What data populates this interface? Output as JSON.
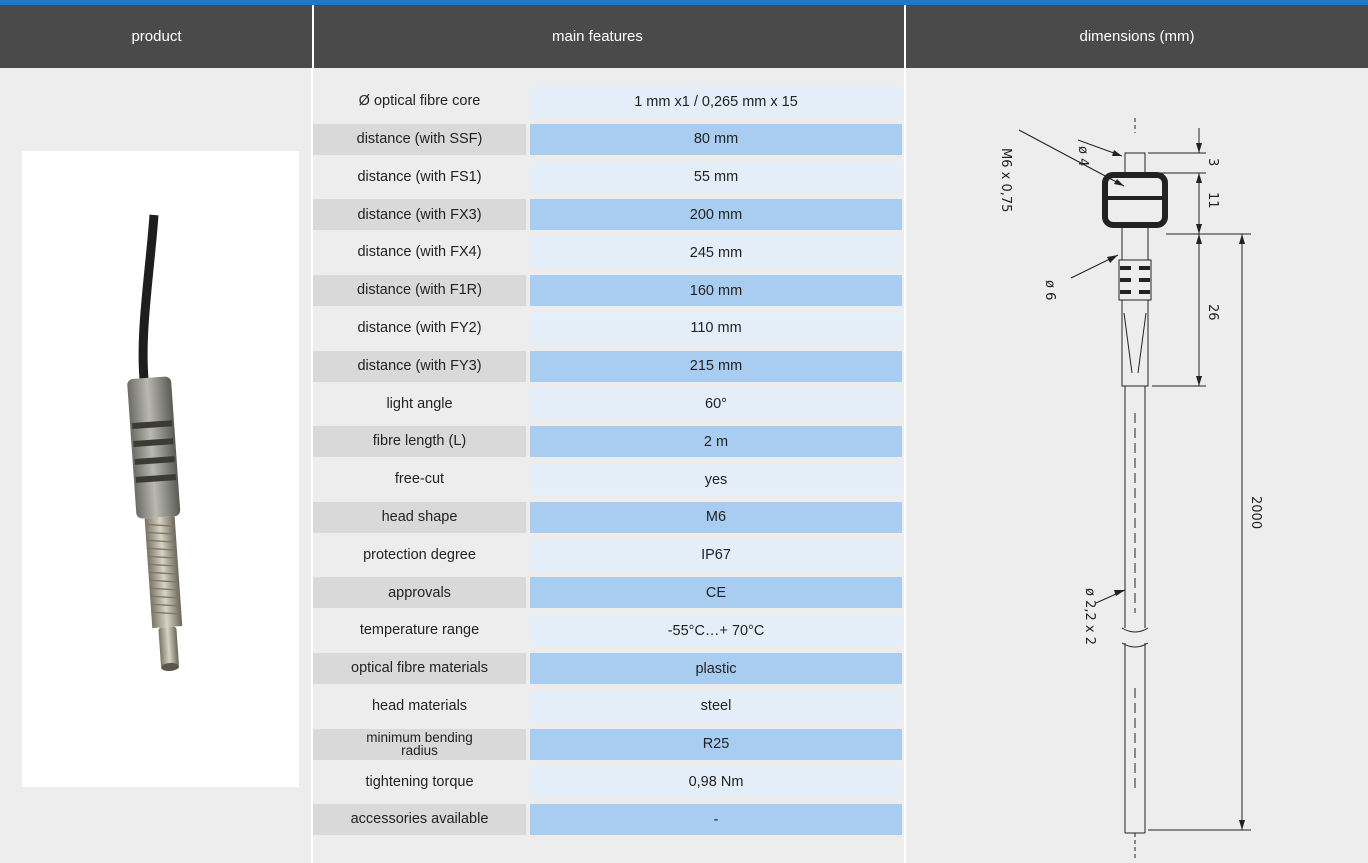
{
  "header": {
    "product": "product",
    "features": "main features",
    "dimensions": "dimensions (mm)"
  },
  "features": [
    {
      "label": "Ø optical fibre core",
      "value": "1 mm x1 / 0,265 mm x 15"
    },
    {
      "label": "distance (with SSF)",
      "value": "80 mm"
    },
    {
      "label": "distance (with FS1)",
      "value": "55 mm"
    },
    {
      "label": "distance (with FX3)",
      "value": "200 mm"
    },
    {
      "label": "distance (with FX4)",
      "value": "245 mm"
    },
    {
      "label": "distance (with F1R)",
      "value": "160 mm"
    },
    {
      "label": "distance (with FY2)",
      "value": "110 mm"
    },
    {
      "label": "distance (with FY3)",
      "value": "215 mm"
    },
    {
      "label": "light angle",
      "value": "60°"
    },
    {
      "label": "fibre length (L)",
      "value": "2 m"
    },
    {
      "label": "free-cut",
      "value": "yes"
    },
    {
      "label": "head shape",
      "value": "M6"
    },
    {
      "label": "protection degree",
      "value": "IP67"
    },
    {
      "label": "approvals",
      "value": "CE"
    },
    {
      "label": "temperature range",
      "value": "-55°C…+ 70°C"
    },
    {
      "label": "optical fibre materials",
      "value": "plastic"
    },
    {
      "label": "head materials",
      "value": "steel"
    },
    {
      "label": "minimum bending radius",
      "value": "R25"
    },
    {
      "label": "tightening torque",
      "value": "0,98 Nm"
    },
    {
      "label": "accessories available",
      "value": "-"
    }
  ],
  "drawing": {
    "thread": "M6 x 0,75",
    "tip_diameter": "ø 4",
    "body_diameter": "ø 6",
    "cable_diameter": "ø 2,2 x 2",
    "dim_tip": "3",
    "dim_nut": "11",
    "dim_body": "26",
    "dim_length": "2000"
  }
}
